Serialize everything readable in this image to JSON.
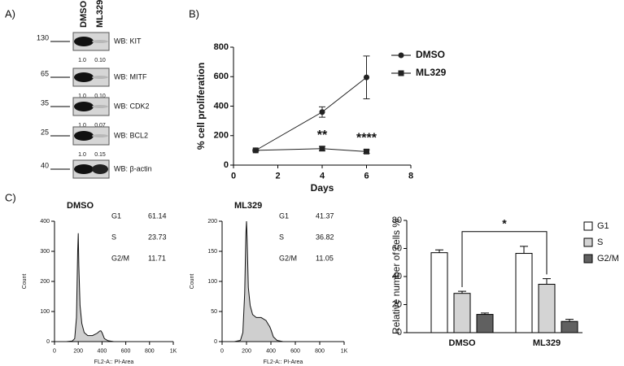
{
  "panel_labels": [
    "A)",
    "B)",
    "C)"
  ],
  "blot": {
    "lanes": [
      "DMSO",
      "ML329"
    ],
    "rows": [
      {
        "marker": "130",
        "label": "WB: KIT",
        "quant": [
          "1.0",
          "0.10"
        ]
      },
      {
        "marker": "65",
        "label": "WB: MITF",
        "quant": [
          "1.0",
          "0.10"
        ]
      },
      {
        "marker": "35",
        "label": "WB: CDK2",
        "quant": [
          "1.0",
          "0.07"
        ]
      },
      {
        "marker": "25",
        "label": "WB: BCL2",
        "quant": [
          "1.0",
          "0.15"
        ]
      },
      {
        "marker": "40",
        "label": "WB: β-actin"
      }
    ]
  },
  "chart_data": [
    {
      "type": "line",
      "xlabel": "Days",
      "ylabel": "% cell proliferation",
      "xlim": [
        0,
        8
      ],
      "xticks": [
        0,
        2,
        4,
        6,
        8
      ],
      "ylim": [
        0,
        800
      ],
      "yticks": [
        0,
        200,
        400,
        600,
        800
      ],
      "x": [
        1,
        4,
        6
      ],
      "legend": "upper right",
      "series": [
        {
          "name": "DMSO",
          "marker": "circle",
          "color": "#222222",
          "values": [
            100,
            360,
            595
          ],
          "errors": [
            5,
            35,
            145
          ]
        },
        {
          "name": "ML329",
          "marker": "square",
          "color": "#222222",
          "values": [
            100,
            112,
            92
          ],
          "errors": [
            5,
            15,
            12
          ],
          "significance": [
            null,
            "**",
            "****"
          ]
        }
      ]
    },
    {
      "type": "histogram-curve",
      "title": "DMSO",
      "xlabel": "FL2-A:: PI-Area",
      "ylabel": "Count",
      "xlim": [
        0,
        1000
      ],
      "xticks": [
        0,
        200,
        400,
        600,
        800,
        {
          "value": 1000,
          "label": "1K"
        }
      ],
      "ylim": [
        0,
        400
      ],
      "yticks": [
        0,
        100,
        200,
        300,
        400
      ],
      "x": [
        0,
        100,
        150,
        170,
        185,
        195,
        200,
        205,
        215,
        230,
        250,
        280,
        320,
        360,
        380,
        390,
        400,
        420,
        450,
        500,
        600,
        800,
        1000
      ],
      "series": [
        {
          "color": "#cfcfcf",
          "values": [
            0,
            0,
            2,
            10,
            80,
            300,
            360,
            250,
            120,
            60,
            30,
            20,
            20,
            28,
            35,
            36,
            30,
            10,
            3,
            0,
            0,
            0,
            0
          ]
        }
      ],
      "stats": [
        {
          "label": "G1",
          "value": 61.14
        },
        {
          "label": "S",
          "value": 23.73
        },
        {
          "label": "G2/M",
          "value": 11.71
        }
      ]
    },
    {
      "type": "histogram-curve",
      "title": "ML329",
      "xlabel": "FL2-A:: PI-Area",
      "ylabel": "Count",
      "xlim": [
        0,
        1000
      ],
      "xticks": [
        0,
        200,
        400,
        600,
        800,
        {
          "value": 1000,
          "label": "1K"
        }
      ],
      "ylim": [
        0,
        200
      ],
      "yticks": [
        0,
        50,
        100,
        150,
        200
      ],
      "x": [
        0,
        100,
        150,
        170,
        185,
        195,
        200,
        205,
        215,
        230,
        250,
        280,
        320,
        360,
        380,
        390,
        400,
        420,
        450,
        500,
        600,
        800,
        1000
      ],
      "series": [
        {
          "color": "#cfcfcf",
          "values": [
            0,
            0,
            2,
            15,
            80,
            180,
            200,
            170,
            90,
            60,
            45,
            40,
            40,
            35,
            28,
            25,
            20,
            8,
            2,
            0,
            0,
            0,
            0
          ]
        }
      ],
      "stats": [
        {
          "label": "G1",
          "value": 41.37
        },
        {
          "label": "S",
          "value": 36.82
        },
        {
          "label": "G2/M",
          "value": 11.05
        }
      ]
    },
    {
      "type": "bar",
      "ylabel": "Relative number of cells %",
      "categories": [
        "DMSO",
        "ML329"
      ],
      "ylim": [
        0,
        80
      ],
      "yticks": [
        0,
        20,
        40,
        60,
        80
      ],
      "legend": "right",
      "significance": "*",
      "series": [
        {
          "name": "G1",
          "color": "#ffffff",
          "values": [
            57,
            56.5
          ],
          "errors": [
            2,
            5
          ]
        },
        {
          "name": "S",
          "color": "#d4d4d4",
          "values": [
            28,
            34.5
          ],
          "errors": [
            1.5,
            4
          ]
        },
        {
          "name": "G2/M",
          "color": "#606060",
          "values": [
            13,
            8
          ],
          "errors": [
            1,
            1.5
          ]
        }
      ]
    }
  ]
}
